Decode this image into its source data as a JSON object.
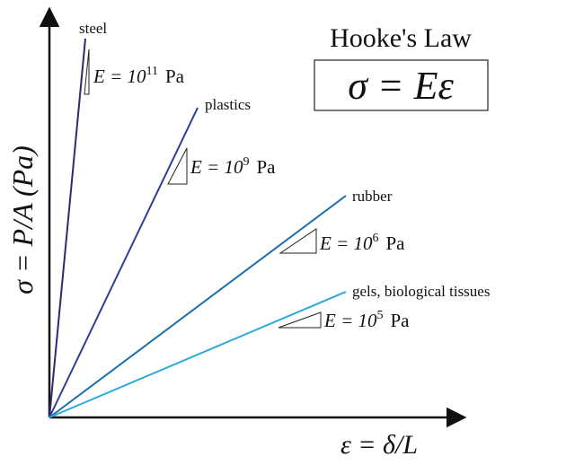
{
  "title": "Hooke's Law",
  "formula": "σ = Eε",
  "y_axis_label": "σ = P/A (Pa)",
  "x_axis_label": "ε = δ/L",
  "materials": [
    {
      "name": "steel",
      "modulus": {
        "prefix": "E = 10",
        "exponent": 11,
        "unit": "Pa"
      }
    },
    {
      "name": "plastics",
      "modulus": {
        "prefix": "E = 10",
        "exponent": 9,
        "unit": "Pa"
      }
    },
    {
      "name": "rubber",
      "modulus": {
        "prefix": "E = 10",
        "exponent": 6,
        "unit": "Pa"
      }
    },
    {
      "name": "gels, biological tissues",
      "modulus": {
        "prefix": "E = 10",
        "exponent": 5,
        "unit": "Pa"
      }
    }
  ]
}
